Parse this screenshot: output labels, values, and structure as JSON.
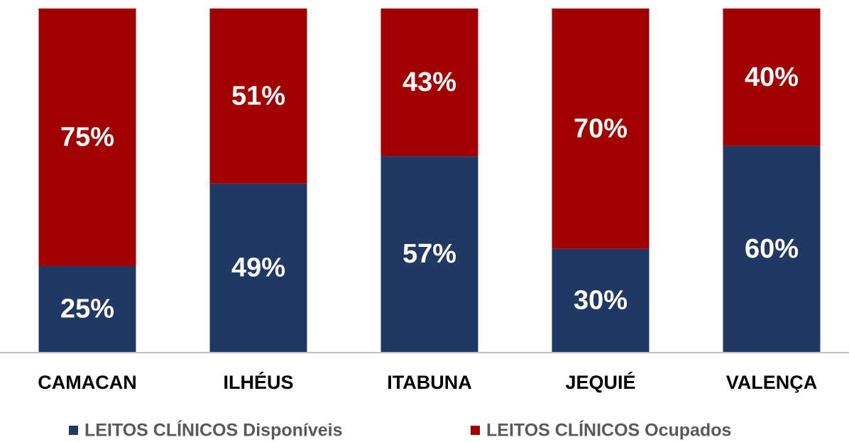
{
  "chart_data": {
    "type": "stacked_bar",
    "categories": [
      "CAMACAN",
      "ILHÉUS",
      "ITABUNA",
      "JEQUIÉ",
      "VALENÇA"
    ],
    "series": [
      {
        "name": "LEITOS CLÍNICOS Disponíveis",
        "color": "#203864",
        "values": [
          25,
          49,
          57,
          30,
          60
        ],
        "value_labels": [
          "25%",
          "49%",
          "57%",
          "30%",
          "60%"
        ]
      },
      {
        "name": "LEITOS CLÍNICOS Ocupados",
        "color": "#a00000",
        "values": [
          75,
          51,
          43,
          70,
          40
        ],
        "value_labels": [
          "75%",
          "51%",
          "43%",
          "70%",
          "40%"
        ]
      }
    ],
    "ylim": [
      0,
      100
    ],
    "legend": "bottom"
  }
}
